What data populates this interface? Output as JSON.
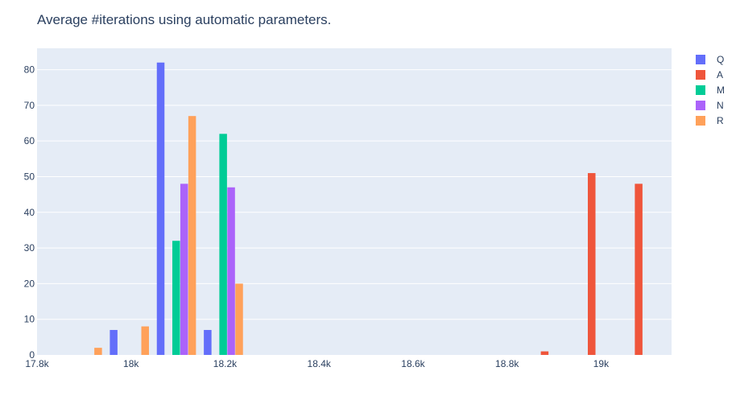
{
  "chart_data": {
    "type": "bar",
    "title": "Average #iterations using automatic parameters.",
    "xlabel": "",
    "ylabel": "",
    "xlim": [
      17800,
      19150
    ],
    "ylim": [
      0,
      86
    ],
    "x_ticks": [
      {
        "value": 17800,
        "label": "17.8k"
      },
      {
        "value": 18000,
        "label": "18k"
      },
      {
        "value": 18200,
        "label": "18.2k"
      },
      {
        "value": 18400,
        "label": "18.4k"
      },
      {
        "value": 18600,
        "label": "18.6k"
      },
      {
        "value": 18800,
        "label": "18.8k"
      },
      {
        "value": 19000,
        "label": "19k"
      }
    ],
    "y_ticks": [
      {
        "value": 0,
        "label": "0"
      },
      {
        "value": 10,
        "label": "10"
      },
      {
        "value": 20,
        "label": "20"
      },
      {
        "value": 30,
        "label": "30"
      },
      {
        "value": 40,
        "label": "40"
      },
      {
        "value": 50,
        "label": "50"
      },
      {
        "value": 60,
        "label": "60"
      },
      {
        "value": 70,
        "label": "70"
      },
      {
        "value": 80,
        "label": "80"
      }
    ],
    "grid": true,
    "legend_position": "right",
    "series": [
      {
        "name": "Q",
        "color": "#636efa",
        "points": [
          {
            "x": 17963,
            "y": 7
          },
          {
            "x": 18063,
            "y": 82
          },
          {
            "x": 18163,
            "y": 7
          }
        ]
      },
      {
        "name": "A",
        "color": "#ef553b",
        "points": [
          {
            "x": 18880,
            "y": 1
          },
          {
            "x": 18980,
            "y": 51
          },
          {
            "x": 19080,
            "y": 48
          }
        ]
      },
      {
        "name": "M",
        "color": "#00cc96",
        "points": [
          {
            "x": 18096,
            "y": 32
          },
          {
            "x": 18196,
            "y": 62
          }
        ]
      },
      {
        "name": "N",
        "color": "#ab63fa",
        "points": [
          {
            "x": 18113,
            "y": 48
          },
          {
            "x": 18213,
            "y": 47
          }
        ]
      },
      {
        "name": "R",
        "color": "#ffa15a",
        "points": [
          {
            "x": 17930,
            "y": 2
          },
          {
            "x": 18030,
            "y": 8
          },
          {
            "x": 18130,
            "y": 67
          },
          {
            "x": 18230,
            "y": 20
          }
        ]
      }
    ]
  }
}
